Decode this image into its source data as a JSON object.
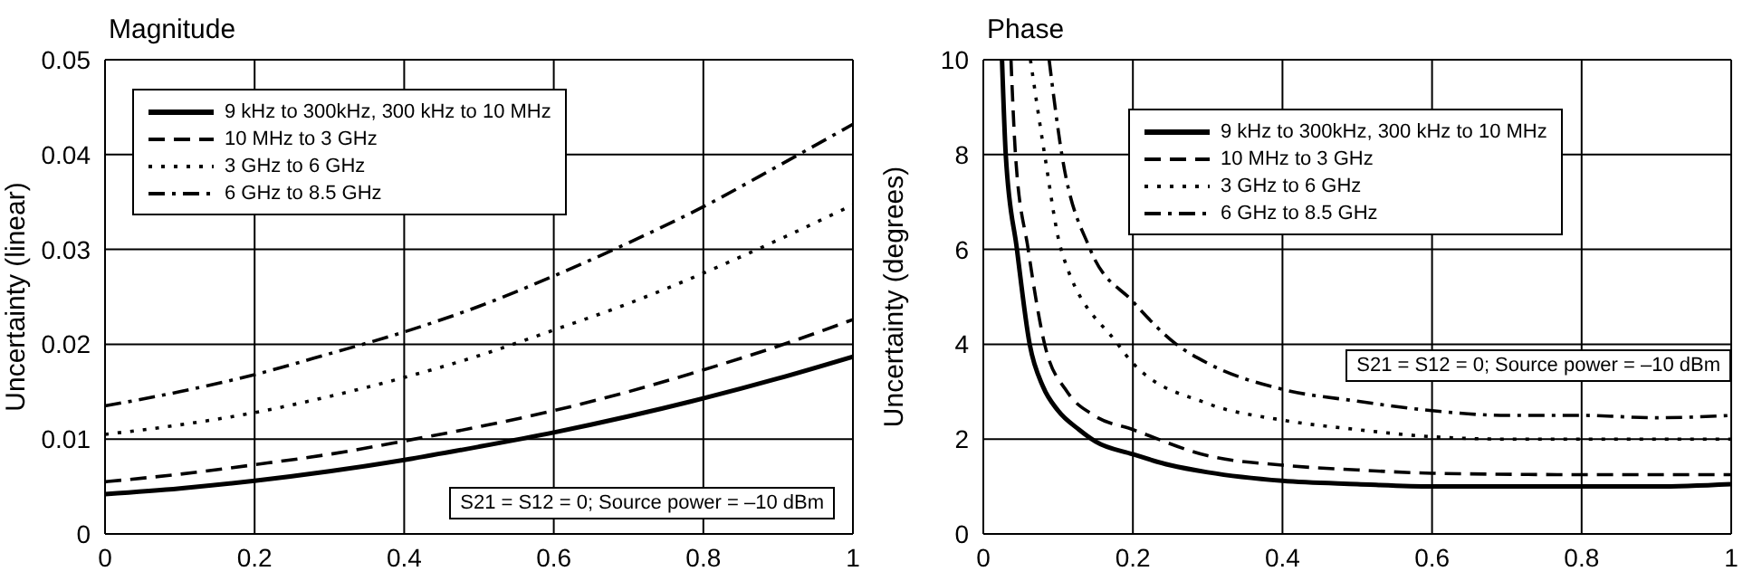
{
  "chart_data": [
    {
      "type": "line",
      "title": "Magnitude",
      "ylabel": "Uncertainty (linear)",
      "xlim": [
        0,
        1
      ],
      "xticks": [
        0,
        0.2,
        0.4,
        0.6,
        0.8,
        1
      ],
      "ylim": [
        0,
        0.05
      ],
      "yticks": [
        0,
        0.01,
        0.02,
        0.03,
        0.04,
        0.05
      ],
      "grid": true,
      "legend": "top left",
      "annotations": [
        "S21 = S12 = 0; Source power = –10 dBm"
      ],
      "x": [
        0,
        0.1,
        0.2,
        0.3,
        0.4,
        0.5,
        0.6,
        0.7,
        0.8,
        0.9,
        1
      ],
      "series": [
        {
          "name": "9 kHz to 300kHz, 300 kHz to 10 MHz",
          "color": "#000000",
          "line_style": "solid",
          "values": [
            0.0042,
            0.0048,
            0.0056,
            0.0066,
            0.0078,
            0.0092,
            0.0107,
            0.0124,
            0.0143,
            0.0164,
            0.0187
          ]
        },
        {
          "name": "10 MHz to 3 GHz",
          "color": "#000000",
          "line_style": "dashed",
          "values": [
            0.0055,
            0.0063,
            0.0073,
            0.0084,
            0.0098,
            0.0113,
            0.013,
            0.015,
            0.0173,
            0.0198,
            0.0226
          ]
        },
        {
          "name": "3 GHz to 6 GHz",
          "color": "#000000",
          "line_style": "dotted",
          "values": [
            0.0105,
            0.0115,
            0.0128,
            0.0145,
            0.0165,
            0.0188,
            0.0215,
            0.0243,
            0.0275,
            0.031,
            0.0347
          ]
        },
        {
          "name": "6 GHz to 8.5 GHz",
          "color": "#000000",
          "line_style": "dashdot",
          "values": [
            0.0135,
            0.015,
            0.0168,
            0.019,
            0.0213,
            0.024,
            0.0272,
            0.0307,
            0.0345,
            0.0388,
            0.0432
          ]
        }
      ]
    },
    {
      "type": "line",
      "title": "Phase",
      "ylabel": "Uncertainty (degrees)",
      "xlim": [
        0,
        1
      ],
      "xticks": [
        0,
        0.2,
        0.4,
        0.6,
        0.8,
        1
      ],
      "ylim": [
        0,
        10
      ],
      "yticks": [
        0,
        2,
        4,
        6,
        8,
        10
      ],
      "grid": true,
      "legend": "top",
      "annotations": [
        "S21 = S12 = 0; Source power = –10 dBm"
      ],
      "series": [
        {
          "name": "9 kHz to 300kHz, 300 kHz to 10 MHz",
          "color": "#000000",
          "line_style": "solid",
          "x": [
            0.025,
            0.03,
            0.045,
            0.062,
            0.08,
            0.1,
            0.128,
            0.15,
            0.2,
            0.25,
            0.3,
            0.4,
            0.5,
            0.6,
            0.7,
            0.8,
            0.9,
            1
          ],
          "values": [
            10,
            8,
            6,
            4,
            3.1,
            2.6,
            2.2,
            1.95,
            1.68,
            1.45,
            1.3,
            1.12,
            1.05,
            1,
            1,
            1,
            1,
            1.05
          ]
        },
        {
          "name": "10 MHz to 3 GHz",
          "color": "#000000",
          "line_style": "dashed",
          "x": [
            0.037,
            0.043,
            0.06,
            0.082,
            0.112,
            0.148,
            0.2,
            0.3,
            0.4,
            0.5,
            0.6,
            0.8,
            1
          ],
          "values": [
            10,
            8,
            6,
            4,
            3,
            2.5,
            2.2,
            1.65,
            1.45,
            1.35,
            1.28,
            1.25,
            1.25
          ]
        },
        {
          "name": "3 GHz to 6 GHz",
          "color": "#000000",
          "line_style": "dotted",
          "x": [
            0.063,
            0.082,
            0.104,
            0.18,
            0.2,
            0.3,
            0.4,
            0.5,
            0.6,
            0.7,
            0.8,
            1
          ],
          "values": [
            10,
            8,
            6,
            4,
            3.6,
            2.75,
            2.4,
            2.2,
            2.05,
            2,
            2,
            2
          ]
        },
        {
          "name": "6 GHz to 8.5 GHz",
          "color": "#000000",
          "line_style": "dashdot",
          "x": [
            0.088,
            0.105,
            0.143,
            0.2,
            0.258,
            0.3,
            0.4,
            0.5,
            0.6,
            0.7,
            0.8,
            0.9,
            1
          ],
          "values": [
            10,
            8,
            6,
            4.9,
            4,
            3.6,
            3.05,
            2.8,
            2.6,
            2.5,
            2.5,
            2.45,
            2.5
          ]
        }
      ]
    }
  ]
}
